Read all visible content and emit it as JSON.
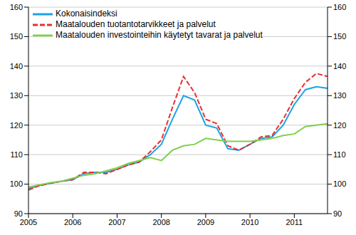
{
  "chart_data": {
    "type": "line",
    "x": [
      2005.0,
      2005.25,
      2005.5,
      2005.75,
      2006.0,
      2006.25,
      2006.5,
      2006.75,
      2007.0,
      2007.25,
      2007.5,
      2007.75,
      2008.0,
      2008.25,
      2008.5,
      2008.75,
      2009.0,
      2009.25,
      2009.5,
      2009.75,
      2010.0,
      2010.25,
      2010.5,
      2010.75,
      2011.0,
      2011.25,
      2011.5,
      2011.75
    ],
    "series": [
      {
        "name": "Kokonaisindeksi",
        "color": "#1aa3e8",
        "line_style": "solid",
        "values": [
          98.5,
          99.5,
          100.3,
          101,
          101.5,
          103.5,
          104,
          104,
          105,
          106.5,
          107.5,
          110,
          113.5,
          122,
          130,
          128.5,
          120,
          119,
          112,
          111.5,
          113.5,
          115.5,
          116,
          120,
          127,
          132,
          133,
          132.5
        ]
      },
      {
        "name": "Maatalouden tuotantotarvikkeet ja palvelut",
        "color": "#e8302e",
        "line_style": "dashed",
        "values": [
          98,
          99.5,
          100.3,
          101,
          101.5,
          104,
          104,
          103.5,
          105,
          106.5,
          107.5,
          111,
          115,
          126,
          136.5,
          131,
          122,
          120.5,
          113,
          111.5,
          113.5,
          116,
          116.5,
          122,
          129,
          134.5,
          137.5,
          136.5
        ]
      },
      {
        "name": "Maatalouden investointeihin käytetyt tavarat ja palvelut",
        "color": "#7fcf4f",
        "line_style": "solid",
        "values": [
          99,
          99.8,
          100.5,
          101,
          102,
          103,
          103.5,
          104.5,
          105.5,
          107,
          108,
          109,
          108,
          111.5,
          113,
          113.5,
          115.5,
          115,
          114.5,
          114.5,
          114.5,
          115,
          115.5,
          116.5,
          117,
          119.5,
          120,
          120.5
        ]
      }
    ],
    "xlim": [
      2005,
      2011.75
    ],
    "xticks": [
      2005,
      2006,
      2007,
      2008,
      2009,
      2010,
      2011
    ],
    "ylim": [
      90,
      160
    ],
    "yticks": [
      90,
      100,
      110,
      120,
      130,
      140,
      150,
      160
    ],
    "grid": true,
    "legend": "top-left"
  }
}
